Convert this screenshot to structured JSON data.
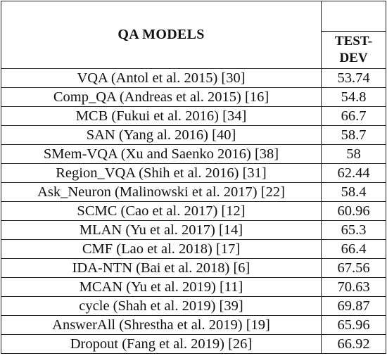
{
  "table": {
    "header": {
      "models_label": "QA MODELS",
      "value_label_line1": "TEST-",
      "value_label_line2": "DEV"
    },
    "rows": [
      {
        "model": "VQA (Antol et al. 2015) [30]",
        "value": "53.74"
      },
      {
        "model": "Comp_QA (Andreas et al. 2015) [16]",
        "value": "54.8"
      },
      {
        "model": "MCB (Fukui et al. 2016) [34]",
        "value": "66.7"
      },
      {
        "model": "SAN (Yang al. 2016) [40]",
        "value": "58.7"
      },
      {
        "model": "SMem-VQA (Xu and Saenko 2016) [38]",
        "value": "58"
      },
      {
        "model": "Region_VQA (Shih et al. 2016) [31]",
        "value": "62.44"
      },
      {
        "model": "Ask_Neuron (Malinowski et al. 2017) [22]",
        "value": "58.4"
      },
      {
        "model": "SCMC (Cao et al. 2017) [12]",
        "value": "60.96"
      },
      {
        "model": "MLAN (Yu et al. 2017) [14]",
        "value": "65.3"
      },
      {
        "model": "CMF (Lao et al. 2018) [17]",
        "value": "66.4"
      },
      {
        "model": "IDA-NTN (Bai et al. 2018) [6]",
        "value": "67.56"
      },
      {
        "model": "MCAN (Yu et al. 2019) [11]",
        "value": "70.63"
      },
      {
        "model": "cycle (Shah et al. 2019) [39]",
        "value": "69.87"
      },
      {
        "model": "AnswerAll (Shrestha et al. 2019) [19]",
        "value": "65.96"
      },
      {
        "model": "Dropout (Fang et al. 2019) [26]",
        "value": "66.92"
      }
    ]
  }
}
